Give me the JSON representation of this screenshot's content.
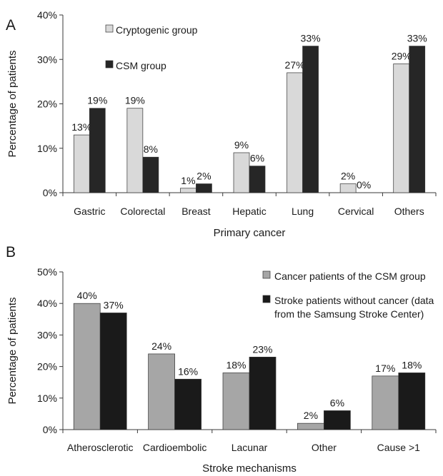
{
  "chart_data": [
    {
      "type": "bar",
      "panel": "A",
      "categories": [
        "Gastric",
        "Colorectal",
        "Breast",
        "Hepatic",
        "Lung",
        "Cervical",
        "Others"
      ],
      "series": [
        {
          "name": "Cryptogenic group",
          "values": [
            13,
            19,
            1,
            9,
            27,
            2,
            29
          ],
          "labels": [
            "13%",
            "19%",
            "1%",
            "9%",
            "27%",
            "2%",
            "29%"
          ],
          "color": "#d9d9d9"
        },
        {
          "name": "CSM group",
          "values": [
            19,
            8,
            2,
            6,
            33,
            0,
            33
          ],
          "labels": [
            "19%",
            "8%",
            "2%",
            "6%",
            "33%",
            "0%",
            "33%"
          ],
          "color": "#262626"
        }
      ],
      "yticks": [
        "0%",
        "10%",
        "20%",
        "30%",
        "40%"
      ],
      "ylim": [
        0,
        40
      ],
      "xlabel": "Primary cancer",
      "ylabel": "Percentage of patients",
      "legend": "top-left",
      "grid": false
    },
    {
      "type": "bar",
      "panel": "B",
      "categories": [
        "Atherosclerotic",
        "Cardioembolic",
        "Lacunar",
        "Other",
        "Cause >1"
      ],
      "series": [
        {
          "name": "Cancer patients of the CSM group",
          "values": [
            40,
            24,
            18,
            2,
            17
          ],
          "labels": [
            "40%",
            "24%",
            "18%",
            "2%",
            "17%"
          ],
          "color": "#a6a6a6"
        },
        {
          "name": "Stroke patients without cancer  (data from the Samsung Stroke Center)",
          "legend_lines": [
            "Stroke patients without cancer  (data",
            "from the Samsung Stroke Center)"
          ],
          "values": [
            37,
            16,
            23,
            6,
            18
          ],
          "labels": [
            "37%",
            "16%",
            "23%",
            "6%",
            "18%"
          ],
          "color": "#1a1a1a"
        }
      ],
      "yticks": [
        "0%",
        "10%",
        "20%",
        "30%",
        "40%",
        "50%"
      ],
      "ylim": [
        0,
        50
      ],
      "xlabel": "Stroke mechanisms",
      "ylabel": "Percentage of patients",
      "legend": "top-right",
      "grid": false
    }
  ]
}
